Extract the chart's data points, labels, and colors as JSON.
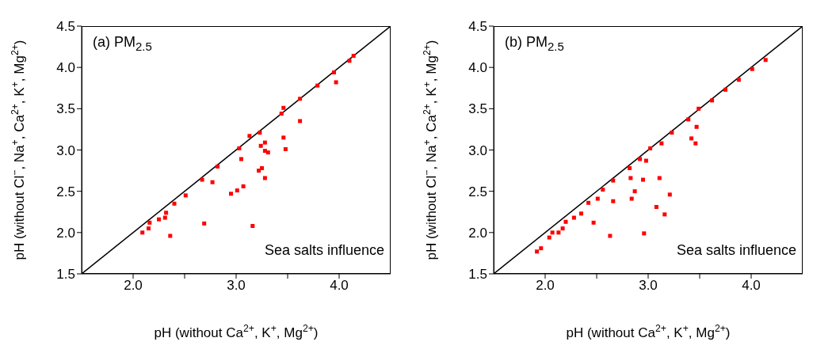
{
  "chart_data": [
    {
      "type": "scatter",
      "title": "(a) PM$_{2.5}$",
      "xlabel": "pH (without Ca$^{2+}$, K$^{+}$, Mg$^{2+}$)",
      "ylabel": "pH (without Cl$^{−}$, Na$^{+}$, Ca$^{2+}$, K$^{+}$, Mg$^{2+}$)",
      "xlim": [
        1.5,
        4.5
      ],
      "ylim": [
        1.5,
        4.5
      ],
      "xticks": [
        {
          "value": 2,
          "label": "2.0"
        },
        {
          "value": 2.5,
          "label": null
        },
        {
          "value": 3,
          "label": "3.0"
        },
        {
          "value": 3.5,
          "label": null
        },
        {
          "value": 4,
          "label": "4.0"
        }
      ],
      "yticks": [
        {
          "value": 1.5,
          "label": "1.5"
        },
        {
          "value": 2,
          "label": "2.0"
        },
        {
          "value": 2.5,
          "label": "2.5"
        },
        {
          "value": 3,
          "label": "3.0"
        },
        {
          "value": 3.5,
          "label": "3.5"
        },
        {
          "value": 4,
          "label": "4.0"
        },
        {
          "value": 4.5,
          "label": "4.5"
        }
      ],
      "annotations": [
        "Sea salts influence"
      ],
      "series": [
        {
          "marker": "square",
          "color": "#ff0000",
          "x": [
            2.09,
            2.15,
            2.16,
            2.25,
            2.31,
            2.32,
            2.4,
            2.51,
            2.67,
            2.77,
            2.82,
            3.03,
            3.13,
            3.23,
            3.44,
            3.46,
            3.62,
            3.79,
            3.95,
            4.1,
            4.14,
            2.36,
            2.69,
            3.16,
            2.95,
            3.01,
            3.07,
            3.22,
            3.25,
            3.28,
            3.05,
            3.24,
            3.28,
            3.28,
            3.31,
            3.46,
            3.48,
            3.62,
            3.97
          ],
          "values": [
            2.0,
            2.05,
            2.12,
            2.16,
            2.18,
            2.24,
            2.35,
            2.45,
            2.64,
            2.61,
            2.8,
            3.02,
            3.17,
            3.21,
            3.44,
            3.51,
            3.62,
            3.78,
            3.94,
            4.08,
            4.14,
            1.96,
            2.11,
            2.08,
            2.47,
            2.51,
            2.56,
            2.75,
            2.78,
            2.66,
            2.89,
            3.05,
            3.09,
            2.99,
            2.97,
            3.15,
            3.01,
            3.35,
            3.82
          ]
        },
        {
          "type": "line",
          "color": "#000000",
          "x": [
            1.5,
            4.5
          ],
          "values": [
            1.5,
            4.5
          ]
        }
      ]
    },
    {
      "type": "scatter",
      "title": "(b) PM$_{2.5}$",
      "xlabel": "pH (without Ca$^{2+}$, K$^{+}$, Mg$^{2+}$)",
      "ylabel": "pH (without Cl$^{−}$, Na$^{+}$, Ca$^{2+}$, K$^{+}$, Mg$^{2+}$)",
      "xlim": [
        1.5,
        4.5
      ],
      "ylim": [
        1.5,
        4.5
      ],
      "xticks": [
        {
          "value": 2,
          "label": "2.0"
        },
        {
          "value": 2.5,
          "label": null
        },
        {
          "value": 3,
          "label": "3.0"
        },
        {
          "value": 3.5,
          "label": null
        },
        {
          "value": 4,
          "label": "4.0"
        }
      ],
      "yticks": [
        {
          "value": 1.5,
          "label": "1.5"
        },
        {
          "value": 2,
          "label": "2.0"
        },
        {
          "value": 2.5,
          "label": "2.5"
        },
        {
          "value": 3,
          "label": "3.0"
        },
        {
          "value": 3.5,
          "label": "3.5"
        },
        {
          "value": 4,
          "label": "4.0"
        },
        {
          "value": 4.5,
          "label": "4.5"
        }
      ],
      "annotations": [
        "Sea salts influence"
      ],
      "series": [
        {
          "marker": "square",
          "color": "#ff0000",
          "x": [
            1.92,
            1.96,
            2.04,
            2.07,
            2.13,
            2.17,
            2.2,
            2.28,
            2.35,
            2.42,
            2.51,
            2.56,
            2.66,
            2.82,
            2.92,
            3.02,
            3.13,
            3.23,
            3.39,
            3.49,
            3.62,
            3.75,
            3.88,
            4.01,
            4.14,
            2.47,
            2.63,
            2.96,
            2.66,
            2.84,
            2.87,
            2.95,
            3.11,
            3.08,
            3.16,
            3.21,
            3.42,
            3.46,
            3.47,
            2.83,
            2.98
          ],
          "values": [
            1.77,
            1.81,
            1.94,
            2.0,
            2.0,
            2.05,
            2.13,
            2.18,
            2.23,
            2.36,
            2.41,
            2.52,
            2.63,
            2.78,
            2.89,
            3.02,
            3.08,
            3.21,
            3.37,
            3.5,
            3.6,
            3.73,
            3.85,
            3.98,
            4.09,
            2.12,
            1.96,
            1.99,
            2.38,
            2.41,
            2.5,
            2.64,
            2.66,
            2.31,
            2.22,
            2.46,
            3.14,
            3.08,
            3.28,
            2.66,
            2.87
          ]
        },
        {
          "type": "line",
          "color": "#000000",
          "x": [
            1.5,
            4.5
          ],
          "values": [
            1.5,
            4.5
          ]
        }
      ]
    }
  ]
}
